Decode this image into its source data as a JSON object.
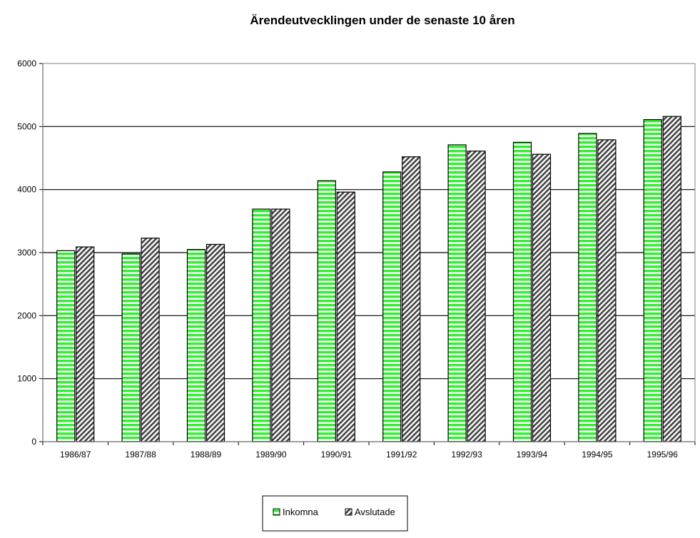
{
  "chart_data": {
    "type": "bar",
    "title": "Ärendeutvecklingen under de senaste 10 åren",
    "xlabel": "",
    "ylabel": "",
    "categories": [
      "1986/87",
      "1987/88",
      "1988/89",
      "1989/90",
      "1990/91",
      "1991/92",
      "1992/93",
      "1993/94",
      "1994/95",
      "1995/96"
    ],
    "series": [
      {
        "name": "Inkomna",
        "color": "#33ee33",
        "pattern": "horizontal-stripes",
        "values": [
          3030,
          2980,
          3050,
          3690,
          4140,
          4280,
          4710,
          4750,
          4890,
          5110
        ]
      },
      {
        "name": "Avslutade",
        "color": "#555555",
        "pattern": "diagonal-hatch",
        "values": [
          3090,
          3230,
          3130,
          3690,
          3960,
          4520,
          4610,
          4560,
          4790,
          5160
        ]
      }
    ],
    "ylim": [
      0,
      6000
    ],
    "yticks": [
      "0",
      "1000",
      "2000",
      "3000",
      "4000",
      "5000",
      "6000"
    ],
    "grid": true,
    "legend_position": "bottom-center"
  }
}
